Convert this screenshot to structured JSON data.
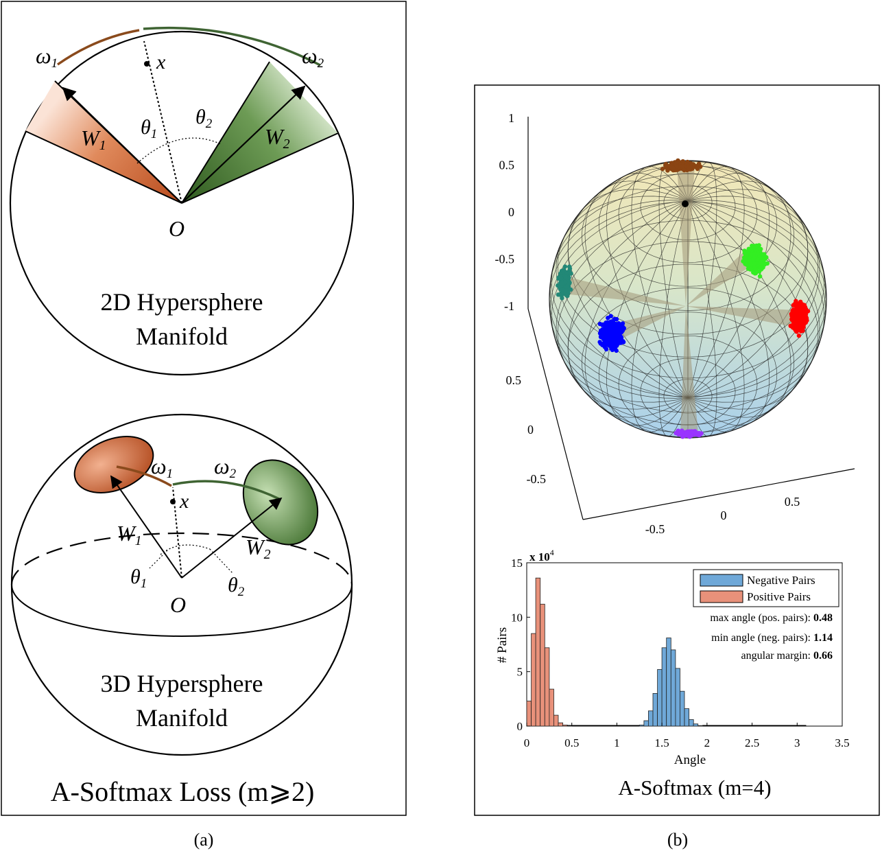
{
  "panel_a": {
    "caption": "(a)",
    "title": "A-Softmax Loss (m⩾2)",
    "top_diagram": {
      "label_line1": "2D Hypersphere",
      "label_line2": "Manifold",
      "omega1": "ω",
      "omega1_sub": "1",
      "omega2": "ω",
      "omega2_sub": "2",
      "x": "x",
      "w1": "W",
      "w1_sub": "1",
      "w2": "W",
      "w2_sub": "2",
      "theta1": "θ",
      "theta1_sub": "1",
      "theta2": "θ",
      "theta2_sub": "2",
      "origin": "O"
    },
    "bottom_diagram": {
      "label_line1": "3D Hypersphere",
      "label_line2": "Manifold",
      "omega1": "ω",
      "omega1_sub": "1",
      "omega2": "ω",
      "omega2_sub": "2",
      "x": "x",
      "w1": "W",
      "w1_sub": "1",
      "w2": "W",
      "w2_sub": "2",
      "theta1": "θ",
      "theta1_sub": "1",
      "theta2": "θ",
      "theta2_sub": "2",
      "origin": "O"
    }
  },
  "panel_b": {
    "caption": "(b)",
    "title": "A-Softmax (m=4)",
    "sphere_axes": {
      "z_ticks": [
        "1",
        "0.5",
        "0",
        "-0.5",
        "-1"
      ],
      "y_ticks": [
        "0.5",
        "0",
        "-0.5"
      ],
      "x_ticks": [
        "-0.5",
        "0",
        "0.5"
      ]
    },
    "cluster_colors": [
      "#8b4513",
      "#33ee22",
      "#ff0000",
      "#0000ff",
      "#228877",
      "#9933ff"
    ],
    "histogram": {
      "exponent_label": "x 10",
      "exponent_power": "4",
      "ylabel": "# Pairs",
      "xlabel": "Angle",
      "y_ticks": [
        "15",
        "10",
        "5",
        "0"
      ],
      "x_ticks": [
        "0",
        "0.5",
        "1",
        "1.5",
        "2",
        "2.5",
        "3",
        "3.5"
      ],
      "legend": [
        {
          "label": "Negative Pairs",
          "color": "#6fa8d8"
        },
        {
          "label": "Positive Pairs",
          "color": "#e8917a"
        }
      ],
      "stats": [
        {
          "label": "max angle (pos. pairs): ",
          "value": "0.48"
        },
        {
          "label": "min angle (neg. pairs): ",
          "value": "1.14"
        },
        {
          "label": "angular margin: ",
          "value": "0.66"
        }
      ]
    }
  },
  "chart_data": {
    "type": "bar",
    "xlabel": "Angle",
    "ylabel": "# Pairs",
    "xlim": [
      0,
      3.5
    ],
    "ylim": [
      0,
      15
    ],
    "y_unit": "x 10^4",
    "bin_width": 0.05,
    "series": [
      {
        "name": "Positive Pairs",
        "bin_starts": [
          0.0,
          0.05,
          0.1,
          0.15,
          0.2,
          0.25,
          0.3,
          0.35,
          0.4,
          0.45
        ],
        "values": [
          2.3,
          8.5,
          13.6,
          11.2,
          7.2,
          3.4,
          1.0,
          0.3,
          0.1,
          0.05
        ]
      },
      {
        "name": "Negative Pairs",
        "bin_starts": [
          1.25,
          1.3,
          1.35,
          1.4,
          1.45,
          1.5,
          1.55,
          1.6,
          1.65,
          1.7,
          1.75,
          1.8,
          1.85,
          1.9
        ],
        "values": [
          0.1,
          0.5,
          1.4,
          3.0,
          5.2,
          7.2,
          8.1,
          7.0,
          5.3,
          3.2,
          1.6,
          0.6,
          0.2,
          0.05
        ]
      }
    ]
  }
}
